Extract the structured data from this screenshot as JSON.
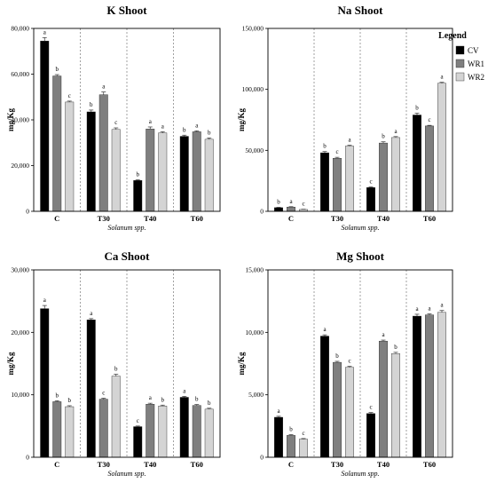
{
  "legend": {
    "title": "Legend",
    "series": [
      {
        "name": "CV",
        "color": "#000000"
      },
      {
        "name": "WR1",
        "color": "#7f7f7f"
      },
      {
        "name": "WR2",
        "color": "#d4d4d4"
      }
    ]
  },
  "chart_data": [
    {
      "type": "bar",
      "title": "K Shoot",
      "xlabel": "Solanum spp.",
      "ylabel": "mg/Kg",
      "categories": [
        "C",
        "T30",
        "T40",
        "T60"
      ],
      "ylim": [
        0,
        80000
      ],
      "yticks": [
        0,
        20000,
        40000,
        60000,
        80000
      ],
      "ytick_labels": [
        "0",
        "20,000",
        "40,000",
        "60,000",
        "80,000"
      ],
      "series": [
        {
          "name": "CV",
          "values": [
            74500,
            43500,
            13500,
            32800
          ],
          "errors": [
            1500,
            800,
            300,
            500
          ],
          "letters": [
            "a",
            "b",
            "b",
            "b"
          ]
        },
        {
          "name": "WR1",
          "values": [
            59200,
            51000,
            36000,
            34800
          ],
          "errors": [
            600,
            1200,
            900,
            400
          ],
          "letters": [
            "b",
            "a",
            "a",
            "a"
          ]
        },
        {
          "name": "WR2",
          "values": [
            47800,
            35800,
            34300,
            31500
          ],
          "errors": [
            400,
            700,
            500,
            600
          ],
          "letters": [
            "c",
            "c",
            "a",
            "b"
          ]
        }
      ]
    },
    {
      "type": "bar",
      "title": "Na Shoot",
      "xlabel": "Solanum spp.",
      "ylabel": "mg/Kg",
      "categories": [
        "C",
        "T30",
        "T40",
        "T60"
      ],
      "ylim": [
        0,
        150000
      ],
      "yticks": [
        0,
        50000,
        100000,
        150000
      ],
      "ytick_labels": [
        "0",
        "50,000",
        "100,000",
        "150,000"
      ],
      "series": [
        {
          "name": "CV",
          "values": [
            3000,
            48000,
            19500,
            79000
          ],
          "errors": [
            300,
            1000,
            500,
            1500
          ],
          "letters": [
            "b",
            "b",
            "c",
            "b"
          ]
        },
        {
          "name": "WR1",
          "values": [
            3500,
            43500,
            56000,
            70000
          ],
          "errors": [
            300,
            800,
            1000,
            500
          ],
          "letters": [
            "a",
            "c",
            "b",
            "c"
          ]
        },
        {
          "name": "WR2",
          "values": [
            1500,
            53500,
            60500,
            105000
          ],
          "errors": [
            200,
            700,
            800,
            800
          ],
          "letters": [
            "c",
            "a",
            "a",
            "a"
          ]
        }
      ]
    },
    {
      "type": "bar",
      "title": "Ca Shoot",
      "xlabel": "Solanum spp.",
      "ylabel": "mg/Kg",
      "categories": [
        "C",
        "T30",
        "T40",
        "T60"
      ],
      "ylim": [
        0,
        30000
      ],
      "yticks": [
        0,
        10000,
        20000,
        30000
      ],
      "ytick_labels": [
        "0",
        "10,000",
        "20,000",
        "30,000"
      ],
      "series": [
        {
          "name": "CV",
          "values": [
            23800,
            22000,
            4900,
            9600
          ],
          "errors": [
            500,
            200,
            100,
            150
          ],
          "letters": [
            "a",
            "a",
            "c",
            "a"
          ]
        },
        {
          "name": "WR1",
          "values": [
            8900,
            9300,
            8500,
            8300
          ],
          "errors": [
            150,
            150,
            150,
            150
          ],
          "letters": [
            "b",
            "c",
            "a",
            "b"
          ]
        },
        {
          "name": "WR2",
          "values": [
            8100,
            13000,
            8200,
            7700
          ],
          "errors": [
            150,
            300,
            150,
            150
          ],
          "letters": [
            "b",
            "b",
            "b",
            "b"
          ]
        }
      ]
    },
    {
      "type": "bar",
      "title": "Mg Shoot",
      "xlabel": "Solanum spp.",
      "ylabel": "mg/Kg",
      "categories": [
        "C",
        "T30",
        "T40",
        "T60"
      ],
      "ylim": [
        0,
        15000
      ],
      "yticks": [
        0,
        5000,
        10000,
        15000
      ],
      "ytick_labels": [
        "0",
        "5,000",
        "10,000",
        "15,000"
      ],
      "series": [
        {
          "name": "CV",
          "values": [
            3200,
            9700,
            3500,
            11300
          ],
          "errors": [
            80,
            100,
            80,
            150
          ],
          "letters": [
            "a",
            "a",
            "c",
            "a"
          ]
        },
        {
          "name": "WR1",
          "values": [
            1750,
            7600,
            9300,
            11400
          ],
          "errors": [
            60,
            80,
            80,
            80
          ],
          "letters": [
            "b",
            "b",
            "a",
            "a"
          ]
        },
        {
          "name": "WR2",
          "values": [
            1450,
            7200,
            8300,
            11600
          ],
          "errors": [
            50,
            80,
            100,
            150
          ],
          "letters": [
            "c",
            "c",
            "b",
            "a"
          ]
        }
      ]
    }
  ]
}
